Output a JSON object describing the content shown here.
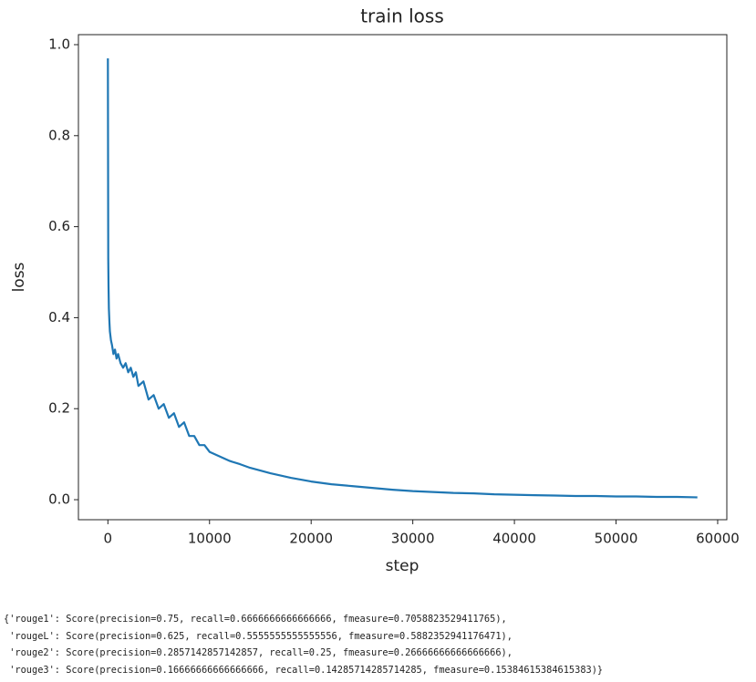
{
  "chart_data": {
    "type": "line",
    "title": "train loss",
    "x_label": "step",
    "y_label": "loss",
    "x": [
      0,
      30,
      60,
      100,
      150,
      200,
      300,
      400,
      550,
      700,
      850,
      1000,
      1250,
      1500,
      1750,
      2000,
      2250,
      2500,
      2750,
      3000,
      3500,
      4000,
      4500,
      5000,
      5500,
      6000,
      6500,
      7000,
      7500,
      8000,
      8500,
      9000,
      9500,
      10000,
      11000,
      12000,
      13000,
      14000,
      15000,
      16000,
      17000,
      18000,
      19000,
      20000,
      22000,
      24000,
      26000,
      28000,
      30000,
      32000,
      34000,
      36000,
      38000,
      40000,
      42000,
      44000,
      46000,
      48000,
      50000,
      52000,
      54000,
      56000,
      58000
    ],
    "values": [
      0.97,
      0.53,
      0.47,
      0.42,
      0.39,
      0.37,
      0.35,
      0.34,
      0.32,
      0.33,
      0.31,
      0.32,
      0.3,
      0.29,
      0.3,
      0.28,
      0.29,
      0.27,
      0.28,
      0.25,
      0.26,
      0.22,
      0.23,
      0.2,
      0.21,
      0.18,
      0.19,
      0.16,
      0.17,
      0.14,
      0.14,
      0.12,
      0.12,
      0.105,
      0.095,
      0.085,
      0.078,
      0.07,
      0.064,
      0.058,
      0.053,
      0.048,
      0.044,
      0.04,
      0.034,
      0.03,
      0.026,
      0.022,
      0.019,
      0.017,
      0.015,
      0.014,
      0.012,
      0.011,
      0.01,
      0.009,
      0.008,
      0.008,
      0.007,
      0.007,
      0.006,
      0.006,
      0.005
    ],
    "color": "#1f77b4",
    "xlim": [
      -2900,
      60900
    ],
    "xticks": [
      0,
      10000,
      20000,
      30000,
      40000,
      50000,
      60000
    ],
    "ylim": [
      -0.044,
      1.022
    ],
    "yticks": [
      {
        "value": 0,
        "label": "0.0"
      },
      0.2,
      0.4,
      0.6,
      0.8,
      {
        "value": 1,
        "label": "1.0"
      }
    ]
  },
  "output_lines": [
    "{'rouge1': Score(precision=0.75, recall=0.6666666666666666, fmeasure=0.7058823529411765),",
    " 'rougeL': Score(precision=0.625, recall=0.5555555555555556, fmeasure=0.5882352941176471),",
    " 'rouge2': Score(precision=0.2857142857142857, recall=0.25, fmeasure=0.26666666666666666),",
    " 'rouge3': Score(precision=0.16666666666666666, recall=0.14285714285714285, fmeasure=0.15384615384615383)}"
  ]
}
